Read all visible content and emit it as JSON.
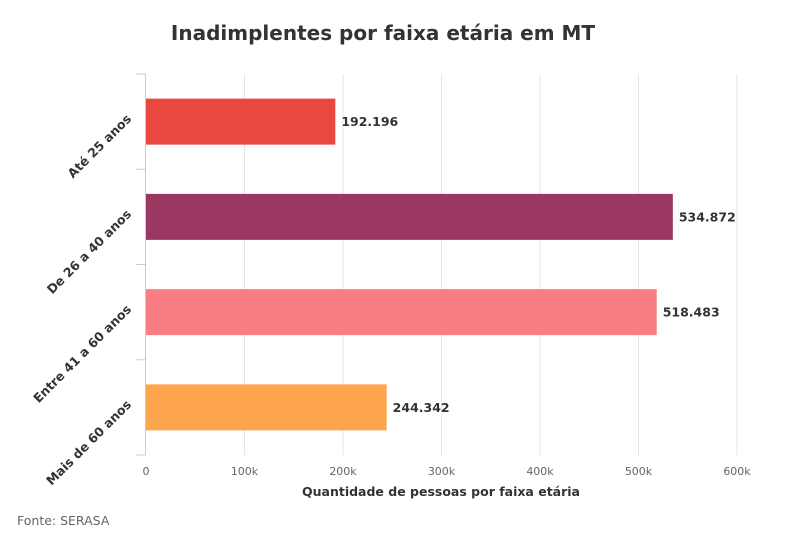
{
  "chart_data": {
    "type": "bar",
    "orientation": "horizontal",
    "title": "Inadimplentes por faixa etária em MT",
    "categories": [
      "Até 25 anos",
      "De 26 a 40 anos",
      "Entre 41 a 60 anos",
      "Mais de 60 anos"
    ],
    "values": [
      192196,
      534872,
      518483,
      244342
    ],
    "value_labels": [
      "192.196",
      "534.872",
      "518.483",
      "244.342"
    ],
    "colors": [
      "#e8483d",
      "#9b3761",
      "#f97d85",
      "#fda64e"
    ],
    "xlabel": "Quantidade de pessoas por faixa etária",
    "ylabel": "",
    "xlim": [
      0,
      600000
    ],
    "xticks": [
      0,
      100000,
      200000,
      300000,
      400000,
      500000,
      600000
    ],
    "xtick_labels": [
      "0",
      "100k",
      "200k",
      "300k",
      "400k",
      "500k",
      "600k"
    ],
    "grid": true,
    "legend": "none"
  },
  "source": "Fonte: SERASA"
}
